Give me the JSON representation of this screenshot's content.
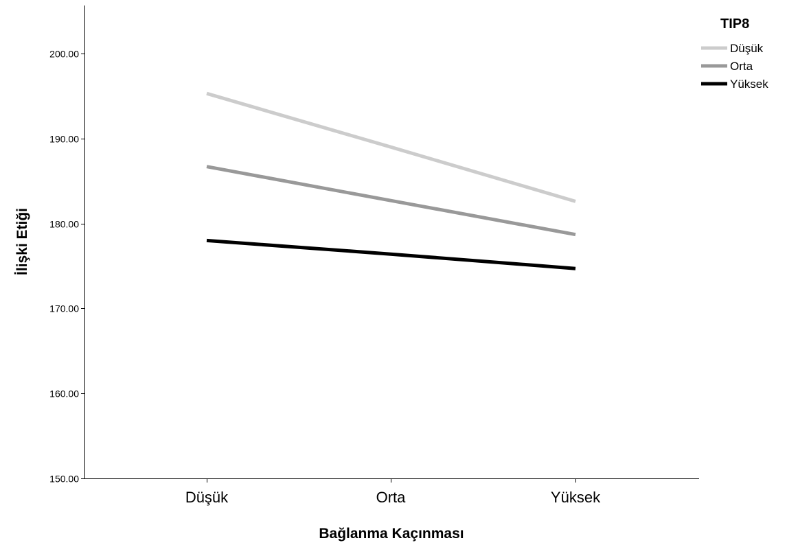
{
  "chart_data": {
    "type": "line",
    "categories": [
      "Düşük",
      "Orta",
      "Yüksek"
    ],
    "series": [
      {
        "name": "Düşük",
        "values": [
          195.3,
          189.0,
          182.6
        ],
        "color": "#cccccc"
      },
      {
        "name": "Orta",
        "values": [
          186.7,
          182.7,
          178.7
        ],
        "color": "#999999"
      },
      {
        "name": "Yüksek",
        "values": [
          178.0,
          176.4,
          174.7
        ],
        "color": "#000000"
      }
    ],
    "xlabel": "Bağlanma Kaçınması",
    "ylabel": "İlişki Etiği",
    "ylim": [
      150,
      205
    ],
    "yticks": [
      "150.00",
      "160.00",
      "170.00",
      "180.00",
      "190.00",
      "200.00"
    ],
    "grid": false,
    "legend": {
      "title": "TIP8",
      "placement": "top-right"
    }
  }
}
